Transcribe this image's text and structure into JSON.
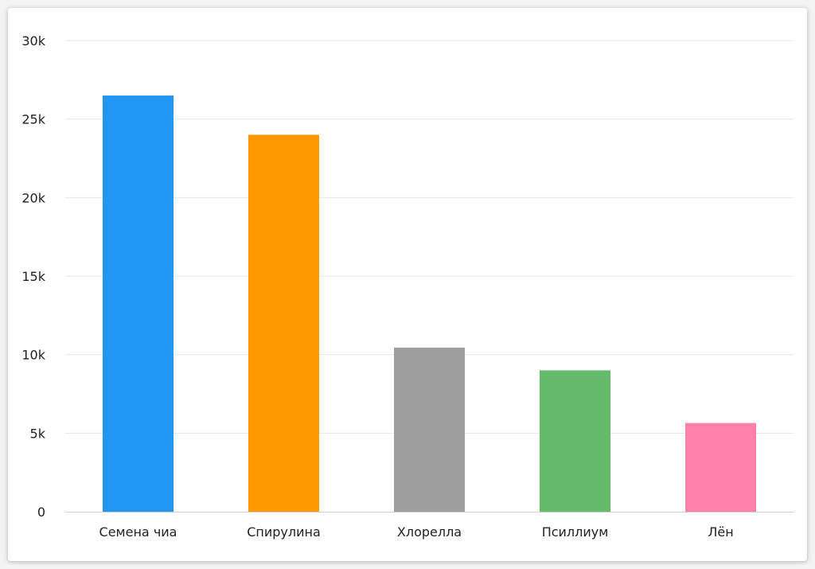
{
  "chart_data": {
    "type": "bar",
    "categories": [
      "Семена чиа",
      "Спирулина",
      "Хлорелла",
      "Псиллиум",
      "Лён"
    ],
    "values": [
      26500,
      24000,
      10450,
      9000,
      5650
    ],
    "colors": [
      "#2196f3",
      "#ff9800",
      "#9e9e9e",
      "#66bb6a",
      "#ff80ab"
    ],
    "ylim": [
      0,
      30000
    ],
    "yticks": [
      0,
      5000,
      10000,
      15000,
      20000,
      25000,
      30000
    ],
    "ytick_labels": [
      "0",
      "5k",
      "10k",
      "15k",
      "20k",
      "25k",
      "30k"
    ],
    "grid": true,
    "gridline_color": "#e8e8e8",
    "axis_color": "#cccccc",
    "legend": "none"
  }
}
